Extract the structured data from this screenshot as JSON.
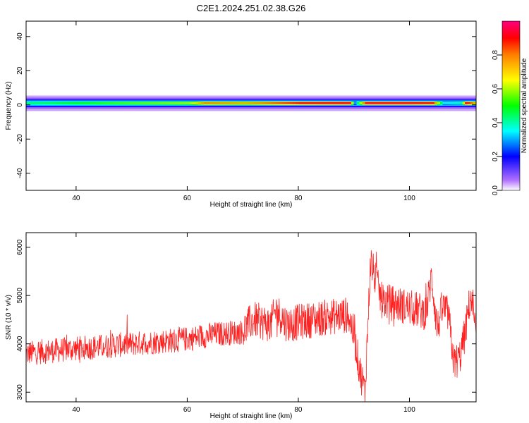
{
  "title": "C2E1.2024.251.02.38.G26",
  "chart_data": [
    {
      "type": "heatmap",
      "xlabel": "Height of straight line (km)",
      "ylabel": "Frequency (Hz)",
      "xlim": [
        31,
        112
      ],
      "ylim": [
        -50,
        49
      ],
      "xticks": [
        40,
        60,
        80,
        100
      ],
      "yticks": [
        -40,
        -20,
        0,
        20,
        40
      ],
      "colorbar": {
        "label": "Normalized spectral amplitude",
        "range": [
          0,
          1
        ],
        "ticks": [
          "0.0",
          "0.2",
          "0.4",
          "0.6",
          "0.8"
        ],
        "colors": [
          "#ffffff",
          "#b070ff",
          "#0000ff",
          "#00ffff",
          "#00ff00",
          "#ffff00",
          "#ff8000",
          "#ff0000",
          "#ff0080"
        ]
      },
      "band": {
        "center_hz": 1,
        "x": [
          31,
          40,
          50,
          60,
          63,
          70,
          80,
          89,
          90,
          92,
          95,
          100,
          104,
          106,
          109,
          110,
          112
        ],
        "amplitude": [
          0.45,
          0.5,
          0.55,
          0.6,
          0.8,
          0.75,
          0.9,
          0.95,
          0.3,
          0.95,
          0.95,
          0.95,
          0.9,
          0.35,
          0.4,
          0.95,
          0.7
        ]
      }
    },
    {
      "type": "line",
      "xlabel": "Height of straight line (km)",
      "ylabel": "SNR (10 * v/v)",
      "xlim": [
        31,
        112
      ],
      "ylim": [
        2800,
        6300
      ],
      "xticks": [
        40,
        60,
        80,
        100
      ],
      "yticks": [
        3000,
        4000,
        5000,
        6000
      ],
      "color": "#ff2020",
      "series": [
        {
          "x": [
            31,
            35,
            40,
            45,
            50,
            55,
            60,
            65,
            70,
            71,
            72,
            75,
            76,
            78,
            80,
            85,
            89,
            90,
            91,
            92,
            93,
            95,
            100,
            103,
            104,
            105,
            106,
            107,
            108,
            109,
            110,
            111,
            112
          ],
          "y": [
            3800,
            3850,
            3900,
            3950,
            4000,
            4050,
            4100,
            4200,
            4250,
            4400,
            4500,
            4400,
            4700,
            4400,
            4450,
            4550,
            4600,
            4200,
            3500,
            3000,
            5700,
            4900,
            4750,
            4650,
            5400,
            4300,
            4750,
            4600,
            3600,
            3700,
            4200,
            5000,
            4150
          ]
        }
      ]
    }
  ]
}
